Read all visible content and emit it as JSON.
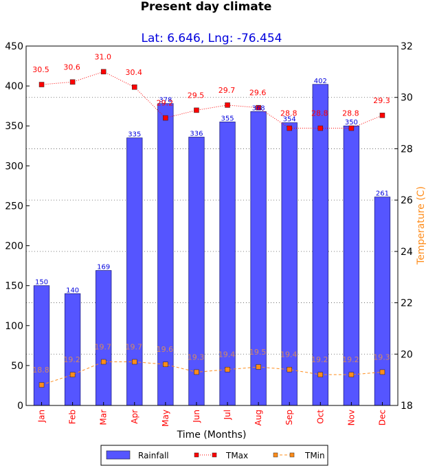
{
  "chart_data": {
    "type": "bar+line",
    "title": "Present day climate",
    "subtitle": "Lat: 6.646, Lng: -76.454",
    "xlabel": "Time (Months)",
    "ylabel_left": "",
    "ylabel_right": "Temperature (C)",
    "categories": [
      "Jan",
      "Feb",
      "Mar",
      "Apr",
      "May",
      "Jun",
      "Jul",
      "Aug",
      "Sep",
      "Oct",
      "Nov",
      "Dec"
    ],
    "ylim_left": [
      0,
      450
    ],
    "yticks_left": [
      0,
      50,
      100,
      150,
      200,
      250,
      300,
      350,
      400,
      450
    ],
    "ylim_right": [
      18,
      32
    ],
    "yticks_right": [
      18,
      20,
      22,
      24,
      26,
      28,
      30,
      32
    ],
    "series": [
      {
        "name": "Rainfall",
        "kind": "bar",
        "axis": "left",
        "color": "#5555ff",
        "values": [
          150,
          140,
          169,
          335,
          378,
          336,
          355,
          368,
          354,
          402,
          350,
          261
        ]
      },
      {
        "name": "TMax",
        "kind": "line",
        "axis": "right",
        "color": "#ff0000",
        "values": [
          30.5,
          30.6,
          31.0,
          30.4,
          29.2,
          29.5,
          29.7,
          29.6,
          28.8,
          28.8,
          28.8,
          29.3
        ]
      },
      {
        "name": "TMin",
        "kind": "line",
        "axis": "right",
        "color": "#ff8c1a",
        "values": [
          18.8,
          19.2,
          19.7,
          19.7,
          19.6,
          19.3,
          19.4,
          19.5,
          19.4,
          19.2,
          19.2,
          19.3
        ]
      }
    ],
    "legend": {
      "position": "bottom-center",
      "items": [
        "Rainfall",
        "TMax",
        "TMin"
      ]
    },
    "grid": "horizontal-dotted-right-axis"
  }
}
